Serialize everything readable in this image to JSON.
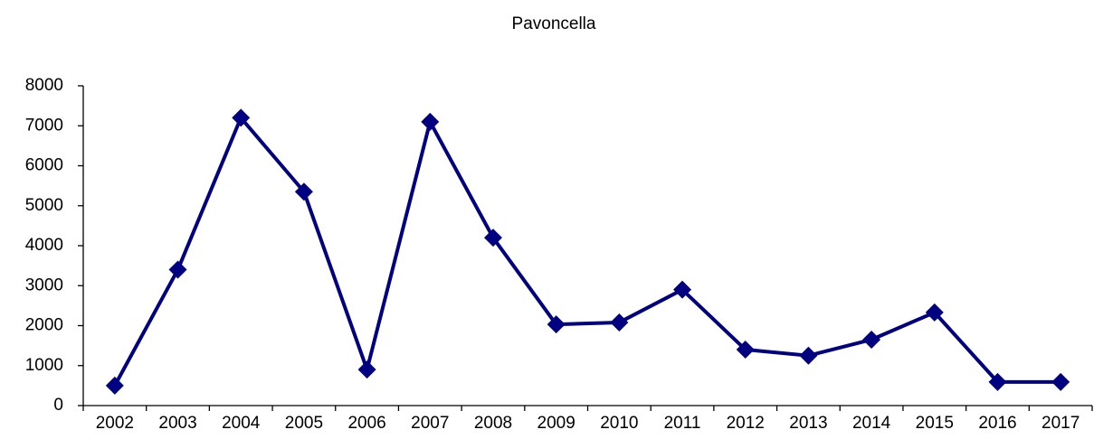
{
  "chart_data": {
    "type": "line",
    "title": "Pavoncella",
    "categories": [
      "2002",
      "2003",
      "2004",
      "2005",
      "2006",
      "2007",
      "2008",
      "2009",
      "2010",
      "2011",
      "2012",
      "2013",
      "2014",
      "2015",
      "2016",
      "2017"
    ],
    "series": [
      {
        "name": "Pavoncella",
        "color": "#000080",
        "values": [
          500,
          3400,
          7200,
          5350,
          900,
          7100,
          4200,
          2030,
          2080,
          2900,
          1400,
          1250,
          1650,
          2330,
          590,
          590
        ]
      }
    ],
    "ylim": [
      0,
      8000
    ],
    "yticks": [
      0,
      1000,
      2000,
      3000,
      4000,
      5000,
      6000,
      7000,
      8000
    ],
    "grid": false
  }
}
